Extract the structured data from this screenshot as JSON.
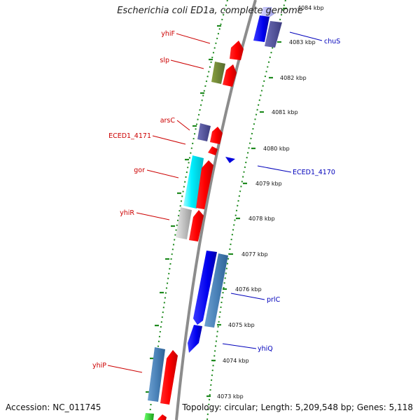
{
  "title": "Escherichia coli ED1a, complete genome",
  "accession": "Accession: NC_011745",
  "topology": "Topology: circular; Length: 5,209,548 bp; Genes: 5,118",
  "colors": {
    "reverse_label": "#cc0000",
    "forward_label": "#0000bb",
    "backbone": "#8c8c8c",
    "tick_marks": "#228b22"
  },
  "ticks": [
    "4084 kbp",
    "4083 kbp",
    "4082 kbp",
    "4081 kbp",
    "4080 kbp",
    "4079 kbp",
    "4078 kbp",
    "4077 kbp",
    "4076 kbp",
    "4075 kbp",
    "4074 kbp",
    "4073 kbp"
  ],
  "gene_labels": [
    {
      "name": "yhiF",
      "strand": "reverse"
    },
    {
      "name": "slp",
      "strand": "reverse"
    },
    {
      "name": "arsC",
      "strand": "reverse"
    },
    {
      "name": "ECED1_4171",
      "strand": "reverse"
    },
    {
      "name": "gor",
      "strand": "reverse"
    },
    {
      "name": "yhiR",
      "strand": "reverse"
    },
    {
      "name": "yhiP",
      "strand": "reverse"
    },
    {
      "name": "chuS",
      "strand": "forward"
    },
    {
      "name": "ECED1_4170",
      "strand": "forward"
    },
    {
      "name": "prlC",
      "strand": "forward"
    },
    {
      "name": "yhiQ",
      "strand": "forward"
    }
  ]
}
